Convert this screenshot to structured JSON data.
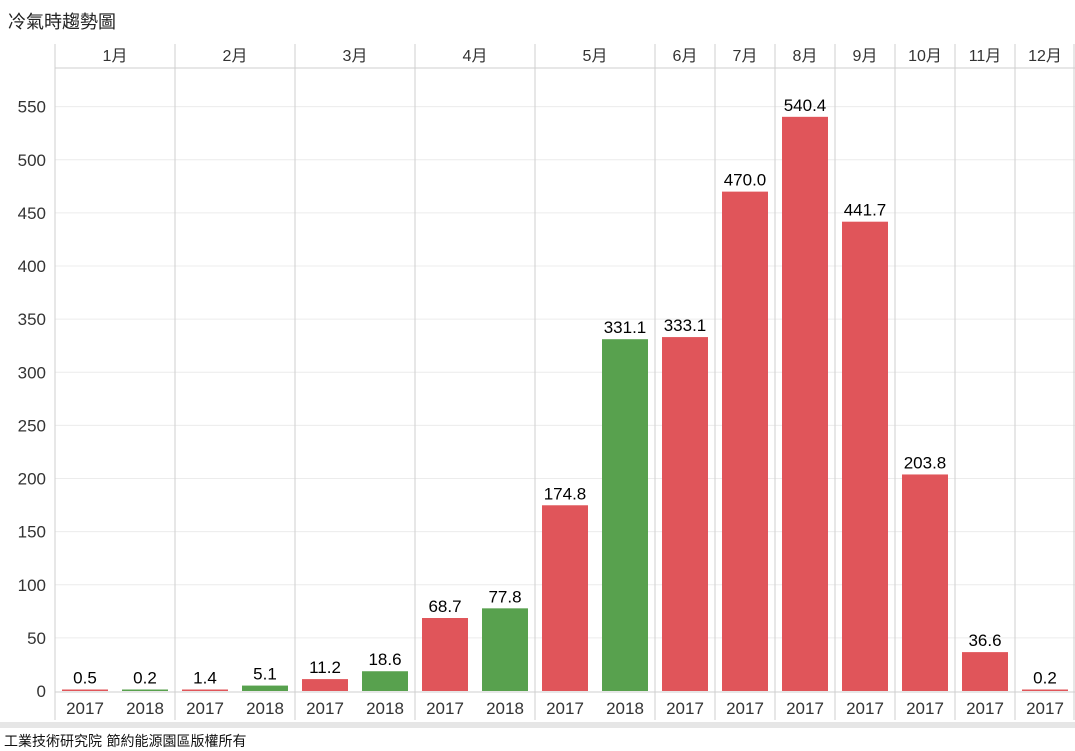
{
  "title": "冷氣時趨勢圖",
  "footer": "工業技術研究院 節約能源園區版權所有",
  "chart_data": {
    "type": "bar",
    "title": "冷氣時趨勢圖",
    "xlabel": "",
    "ylabel": "",
    "ylim": [
      0,
      580
    ],
    "yticks": [
      0,
      50,
      100,
      150,
      200,
      250,
      300,
      350,
      400,
      450,
      500,
      550
    ],
    "grid": true,
    "colors": {
      "2017": "#e0555a",
      "2018": "#58a14e"
    },
    "months": [
      {
        "label": "1月",
        "bars": [
          {
            "year": "2017",
            "value": 0.5,
            "label": "0.5"
          },
          {
            "year": "2018",
            "value": 0.2,
            "label": "0.2"
          }
        ]
      },
      {
        "label": "2月",
        "bars": [
          {
            "year": "2017",
            "value": 1.4,
            "label": "1.4"
          },
          {
            "year": "2018",
            "value": 5.1,
            "label": "5.1"
          }
        ]
      },
      {
        "label": "3月",
        "bars": [
          {
            "year": "2017",
            "value": 11.2,
            "label": "11.2"
          },
          {
            "year": "2018",
            "value": 18.6,
            "label": "18.6"
          }
        ]
      },
      {
        "label": "4月",
        "bars": [
          {
            "year": "2017",
            "value": 68.7,
            "label": "68.7"
          },
          {
            "year": "2018",
            "value": 77.8,
            "label": "77.8"
          }
        ]
      },
      {
        "label": "5月",
        "bars": [
          {
            "year": "2017",
            "value": 174.8,
            "label": "174.8"
          },
          {
            "year": "2018",
            "value": 331.1,
            "label": "331.1"
          }
        ]
      },
      {
        "label": "6月",
        "bars": [
          {
            "year": "2017",
            "value": 333.1,
            "label": "333.1"
          }
        ]
      },
      {
        "label": "7月",
        "bars": [
          {
            "year": "2017",
            "value": 470.0,
            "label": "470.0"
          }
        ]
      },
      {
        "label": "8月",
        "bars": [
          {
            "year": "2017",
            "value": 540.4,
            "label": "540.4"
          }
        ]
      },
      {
        "label": "9月",
        "bars": [
          {
            "year": "2017",
            "value": 441.7,
            "label": "441.7"
          }
        ]
      },
      {
        "label": "10月",
        "bars": [
          {
            "year": "2017",
            "value": 203.8,
            "label": "203.8"
          }
        ]
      },
      {
        "label": "11月",
        "bars": [
          {
            "year": "2017",
            "value": 36.6,
            "label": "36.6"
          }
        ]
      },
      {
        "label": "12月",
        "bars": [
          {
            "year": "2017",
            "value": 0.2,
            "label": "0.2"
          }
        ]
      }
    ]
  }
}
